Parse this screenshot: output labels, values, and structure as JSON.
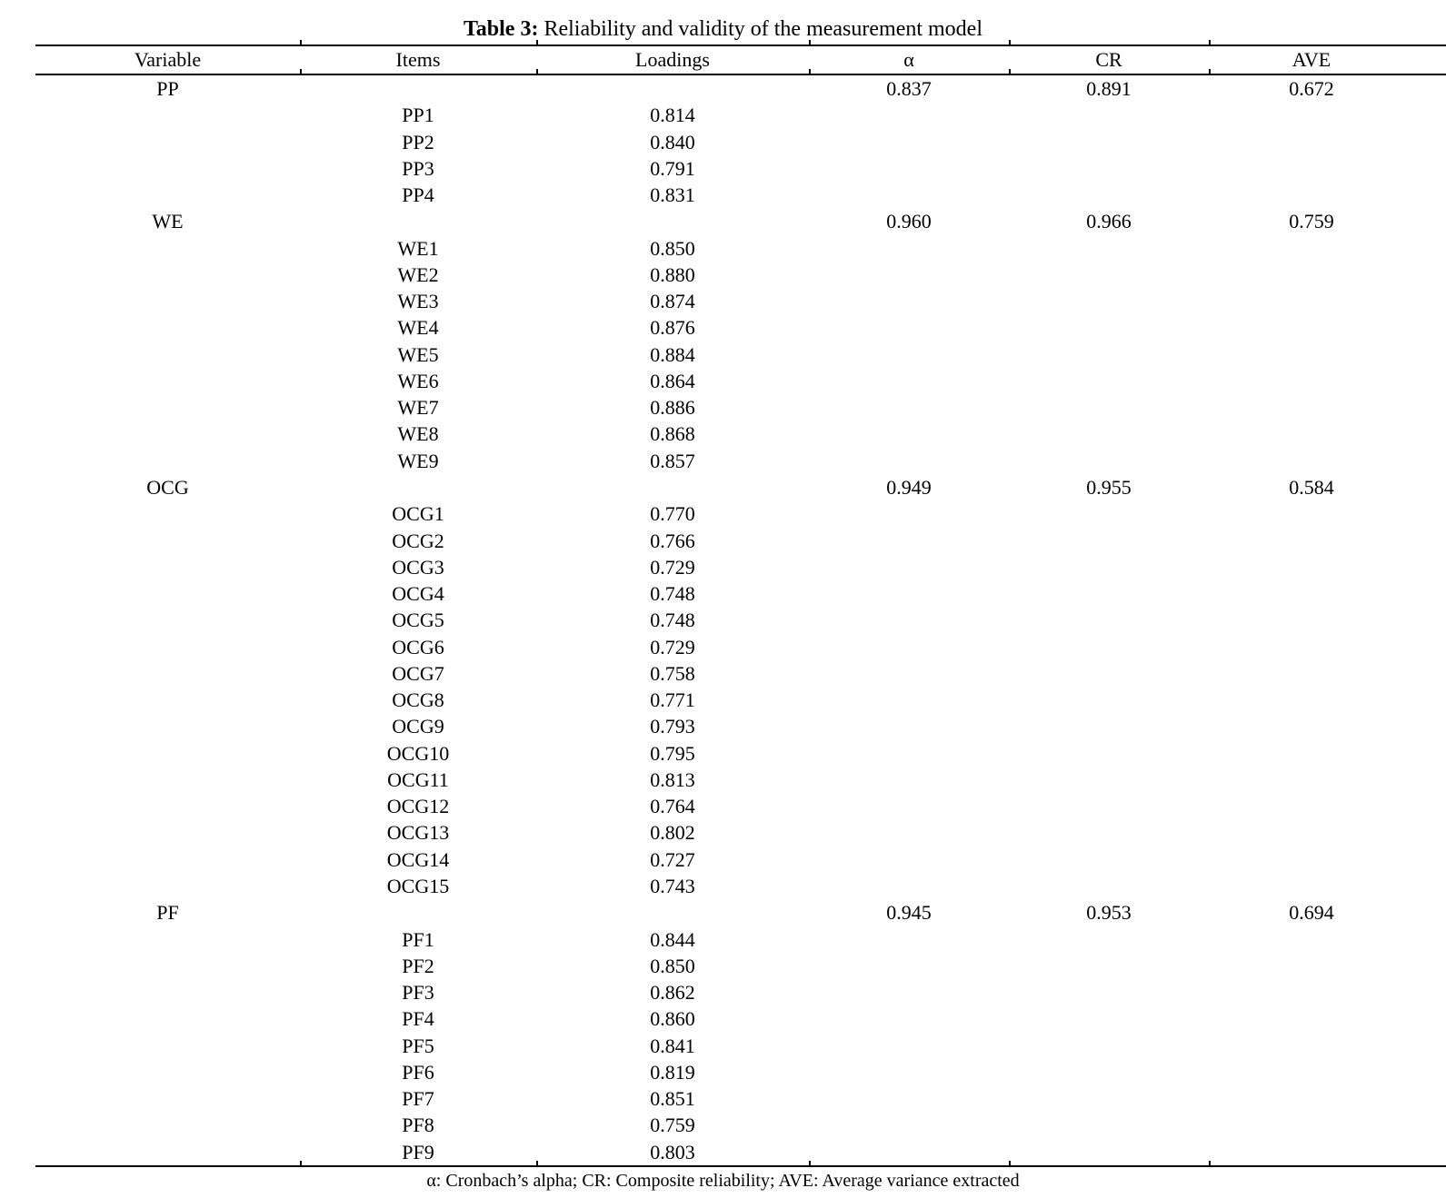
{
  "title": {
    "prefix": "Table 3:",
    "rest": " Reliability and validity of the measurement model"
  },
  "columns": {
    "variable": "Variable",
    "items": "Items",
    "loadings": "Loadings",
    "alpha": "α",
    "cr": "CR",
    "ave": "AVE"
  },
  "footnote": "α: Cronbach’s alpha; CR: Composite reliability; AVE: Average variance extracted",
  "groups": [
    {
      "variable": "PP",
      "alpha": "0.837",
      "cr": "0.891",
      "ave": "0.672",
      "items": [
        [
          "PP1",
          "0.814"
        ],
        [
          "PP2",
          "0.840"
        ],
        [
          "PP3",
          "0.791"
        ],
        [
          "PP4",
          "0.831"
        ]
      ]
    },
    {
      "variable": "WE",
      "alpha": "0.960",
      "cr": "0.966",
      "ave": "0.759",
      "items": [
        [
          "WE1",
          "0.850"
        ],
        [
          "WE2",
          "0.880"
        ],
        [
          "WE3",
          "0.874"
        ],
        [
          "WE4",
          "0.876"
        ],
        [
          "WE5",
          "0.884"
        ],
        [
          "WE6",
          "0.864"
        ],
        [
          "WE7",
          "0.886"
        ],
        [
          "WE8",
          "0.868"
        ],
        [
          "WE9",
          "0.857"
        ]
      ]
    },
    {
      "variable": "OCG",
      "alpha": "0.949",
      "cr": "0.955",
      "ave": "0.584",
      "items": [
        [
          "OCG1",
          "0.770"
        ],
        [
          "OCG2",
          "0.766"
        ],
        [
          "OCG3",
          "0.729"
        ],
        [
          "OCG4",
          "0.748"
        ],
        [
          "OCG5",
          "0.748"
        ],
        [
          "OCG6",
          "0.729"
        ],
        [
          "OCG7",
          "0.758"
        ],
        [
          "OCG8",
          "0.771"
        ],
        [
          "OCG9",
          "0.793"
        ],
        [
          "OCG10",
          "0.795"
        ],
        [
          "OCG11",
          "0.813"
        ],
        [
          "OCG12",
          "0.764"
        ],
        [
          "OCG13",
          "0.802"
        ],
        [
          "OCG14",
          "0.727"
        ],
        [
          "OCG15",
          "0.743"
        ]
      ]
    },
    {
      "variable": "PF",
      "alpha": "0.945",
      "cr": "0.953",
      "ave": "0.694",
      "items": [
        [
          "PF1",
          "0.844"
        ],
        [
          "PF2",
          "0.850"
        ],
        [
          "PF3",
          "0.862"
        ],
        [
          "PF4",
          "0.860"
        ],
        [
          "PF5",
          "0.841"
        ],
        [
          "PF6",
          "0.819"
        ],
        [
          "PF7",
          "0.851"
        ],
        [
          "PF8",
          "0.759"
        ],
        [
          "PF9",
          "0.803"
        ]
      ]
    }
  ]
}
